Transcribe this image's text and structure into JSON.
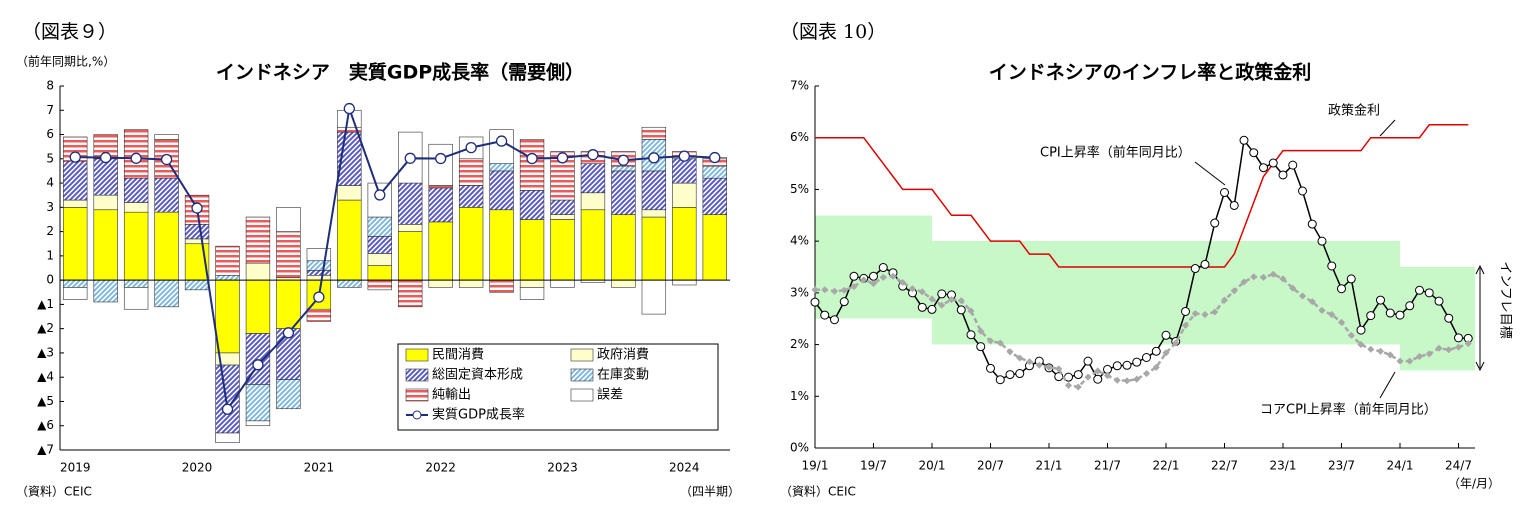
{
  "chart_data": [
    {
      "type": "bar",
      "stacked": true,
      "figure_label": "（図表９）",
      "title": "インドネシア　実質GDP成長率（需要側）",
      "y_label": "（前年同期比,%）",
      "x_label": "（四半期）",
      "source": "（資料）CEIC",
      "legend": "lower right",
      "categories": [
        "2019",
        null,
        null,
        null,
        "2020",
        null,
        null,
        null,
        "2021",
        null,
        null,
        null,
        "2022",
        null,
        null,
        null,
        "2023",
        null,
        null,
        null,
        "2024",
        null
      ],
      "ylim": [
        -7,
        8
      ],
      "yticks": [
        8,
        7,
        6,
        5,
        4,
        3,
        2,
        1,
        0,
        {
          "value": -1,
          "label": "▲1"
        },
        {
          "value": -2,
          "label": "▲2"
        },
        {
          "value": -3,
          "label": "▲3"
        },
        {
          "value": -4,
          "label": "▲4"
        },
        {
          "value": -5,
          "label": "▲5"
        },
        {
          "value": -6,
          "label": "▲6"
        },
        {
          "value": -7,
          "label": "▲7"
        }
      ],
      "series": [
        {
          "name": "民間消費",
          "color": "#ffff00",
          "pattern": "solid",
          "values": [
            3.0,
            2.9,
            2.8,
            2.8,
            1.5,
            -3.0,
            -2.2,
            -2.0,
            -1.2,
            3.3,
            0.6,
            2.0,
            2.4,
            3.0,
            2.9,
            2.5,
            2.5,
            2.9,
            2.7,
            2.6,
            3.0,
            2.7
          ]
        },
        {
          "name": "政府消費",
          "color": "#ffffcc",
          "pattern": "solid",
          "values": [
            0.3,
            0.6,
            0.4,
            0.0,
            0.2,
            -0.5,
            0.7,
            0.1,
            0.2,
            0.6,
            0.5,
            0.3,
            -0.3,
            -0.3,
            0.0,
            -0.3,
            0.2,
            0.7,
            -0.3,
            0.3,
            1.0,
            0.0
          ]
        },
        {
          "name": "総固定資本形成",
          "color": "#5a5ac8",
          "pattern": "diagonal",
          "values": [
            1.6,
            1.5,
            1.0,
            1.4,
            0.6,
            -2.8,
            -2.1,
            -2.1,
            0.2,
            2.2,
            0.7,
            1.7,
            1.4,
            0.9,
            1.6,
            1.2,
            0.6,
            1.2,
            1.8,
            1.6,
            1.0,
            1.5
          ]
        },
        {
          "name": "在庫変動",
          "color": "#7fb8e0",
          "pattern": "diagonal",
          "values": [
            -0.3,
            -0.9,
            -0.3,
            -1.1,
            -0.4,
            0.2,
            -1.5,
            -1.2,
            0.4,
            -0.3,
            0.8,
            0.0,
            0.0,
            0.0,
            0.3,
            0.0,
            0.0,
            0.0,
            0.2,
            1.3,
            0.1,
            0.5
          ]
        },
        {
          "name": "純輸出",
          "color": "#e85c5c",
          "pattern": "horizontal",
          "values": [
            1.0,
            1.0,
            2.0,
            1.6,
            1.2,
            1.2,
            1.9,
            1.9,
            -0.5,
            0.2,
            -0.4,
            -1.1,
            0.1,
            1.1,
            -0.5,
            2.1,
            2.0,
            0.5,
            0.6,
            0.5,
            0.2,
            0.3
          ]
        },
        {
          "name": "誤差",
          "color": "#ffffff",
          "pattern": "solid",
          "values": [
            -0.5,
            0.0,
            -0.9,
            0.2,
            0.0,
            -0.4,
            -0.2,
            1.0,
            0.5,
            0.7,
            1.4,
            2.1,
            1.7,
            0.9,
            1.4,
            -0.5,
            -0.3,
            -0.1,
            0.0,
            -1.4,
            -0.2,
            0.05
          ]
        },
        {
          "name": "実質GDP成長率",
          "type": "line",
          "color": "#1f2d7a",
          "values": [
            5.07,
            5.05,
            5.02,
            4.97,
            2.97,
            -5.32,
            -3.49,
            -2.17,
            -0.7,
            7.07,
            3.51,
            5.02,
            5.01,
            5.46,
            5.73,
            5.01,
            5.04,
            5.17,
            4.94,
            5.04,
            5.11,
            5.05
          ]
        }
      ]
    },
    {
      "type": "line",
      "figure_label": "（図表 10）",
      "title": "インドネシアのインフレ率と政策金利",
      "x_label": "（年/月）",
      "source": "（資料）CEIC",
      "categories": [
        "19/1",
        null,
        null,
        null,
        null,
        null,
        "19/7",
        null,
        null,
        null,
        null,
        null,
        "20/1",
        null,
        null,
        null,
        null,
        null,
        "20/7",
        null,
        null,
        null,
        null,
        null,
        "21/1",
        null,
        null,
        null,
        null,
        null,
        "21/7",
        null,
        null,
        null,
        null,
        null,
        "22/1",
        null,
        null,
        null,
        null,
        null,
        "22/7",
        null,
        null,
        null,
        null,
        null,
        "23/1",
        null,
        null,
        null,
        null,
        null,
        "23/7",
        null,
        null,
        null,
        null,
        null,
        "24/1",
        null,
        null,
        null,
        null,
        null,
        "24/7",
        null
      ],
      "ylim": [
        0,
        7
      ],
      "yticks": [
        {
          "value": 0,
          "label": "0%"
        },
        {
          "value": 1,
          "label": "1%"
        },
        {
          "value": 2,
          "label": "2%"
        },
        {
          "value": 3,
          "label": "3%"
        },
        {
          "value": 4,
          "label": "4%"
        },
        {
          "value": 5,
          "label": "5%"
        },
        {
          "value": 6,
          "label": "6%"
        },
        {
          "value": 7,
          "label": "7%"
        }
      ],
      "target_band": {
        "name": "インフレ目標",
        "color": "#c8f7c8",
        "low": [
          2.5,
          2.5,
          2.5,
          2.5,
          2.5,
          2.5,
          2.5,
          2.5,
          2.5,
          2.5,
          2.5,
          2.5,
          2,
          2,
          2,
          2,
          2,
          2,
          2,
          2,
          2,
          2,
          2,
          2,
          2,
          2,
          2,
          2,
          2,
          2,
          2,
          2,
          2,
          2,
          2,
          2,
          2,
          2,
          2,
          2,
          2,
          2,
          2,
          2,
          2,
          2,
          2,
          2,
          2,
          2,
          2,
          2,
          2,
          2,
          2,
          2,
          2,
          2,
          2,
          2,
          1.5,
          1.5,
          1.5,
          1.5,
          1.5,
          1.5,
          1.5,
          1.5
        ],
        "high": [
          4.5,
          4.5,
          4.5,
          4.5,
          4.5,
          4.5,
          4.5,
          4.5,
          4.5,
          4.5,
          4.5,
          4.5,
          4,
          4,
          4,
          4,
          4,
          4,
          4,
          4,
          4,
          4,
          4,
          4,
          4,
          4,
          4,
          4,
          4,
          4,
          4,
          4,
          4,
          4,
          4,
          4,
          4,
          4,
          4,
          4,
          4,
          4,
          4,
          4,
          4,
          4,
          4,
          4,
          4,
          4,
          4,
          4,
          4,
          4,
          4,
          4,
          4,
          4,
          4,
          4,
          3.5,
          3.5,
          3.5,
          3.5,
          3.5,
          3.5,
          3.5,
          3.5
        ]
      },
      "series": [
        {
          "name": "政策金利",
          "color": "#e00000",
          "marker": "none",
          "values": [
            6,
            6,
            6,
            6,
            6,
            6,
            5.75,
            5.5,
            5.25,
            5,
            5,
            5,
            5,
            4.75,
            4.5,
            4.5,
            4.5,
            4.25,
            4,
            4,
            4,
            4,
            3.75,
            3.75,
            3.75,
            3.5,
            3.5,
            3.5,
            3.5,
            3.5,
            3.5,
            3.5,
            3.5,
            3.5,
            3.5,
            3.5,
            3.5,
            3.5,
            3.5,
            3.5,
            3.5,
            3.5,
            3.5,
            3.75,
            4.25,
            4.75,
            5.25,
            5.5,
            5.75,
            5.75,
            5.75,
            5.75,
            5.75,
            5.75,
            5.75,
            5.75,
            5.75,
            6,
            6,
            6,
            6,
            6,
            6,
            6.25,
            6.25,
            6.25,
            6.25,
            6.25
          ]
        },
        {
          "name": "CPI上昇率（前年同月比）",
          "color": "#000000",
          "marker": "circle",
          "values": [
            2.82,
            2.57,
            2.48,
            2.83,
            3.32,
            3.28,
            3.32,
            3.49,
            3.39,
            3.13,
            3.0,
            2.72,
            2.68,
            2.98,
            2.96,
            2.67,
            2.19,
            1.96,
            1.54,
            1.32,
            1.42,
            1.44,
            1.59,
            1.68,
            1.55,
            1.38,
            1.37,
            1.42,
            1.68,
            1.33,
            1.52,
            1.59,
            1.6,
            1.66,
            1.75,
            1.87,
            2.18,
            2.06,
            2.64,
            3.47,
            3.55,
            4.35,
            4.94,
            4.69,
            5.95,
            5.71,
            5.42,
            5.51,
            5.28,
            5.47,
            4.97,
            4.33,
            4.0,
            3.52,
            3.08,
            3.27,
            2.28,
            2.56,
            2.86,
            2.61,
            2.57,
            2.75,
            3.05,
            3.0,
            2.84,
            2.51,
            2.13,
            2.12
          ]
        },
        {
          "name": "コアCPI上昇率（前年同月比）",
          "color": "#a8a8a8",
          "marker": "dot",
          "dash": true,
          "values": [
            3.06,
            3.06,
            3.03,
            3.05,
            3.12,
            3.25,
            3.18,
            3.3,
            3.32,
            3.2,
            3.08,
            3.02,
            2.88,
            2.76,
            2.87,
            2.85,
            2.65,
            2.26,
            2.07,
            2.03,
            1.86,
            1.74,
            1.67,
            1.6,
            1.56,
            1.53,
            1.21,
            1.18,
            1.37,
            1.49,
            1.4,
            1.31,
            1.3,
            1.33,
            1.44,
            1.56,
            1.84,
            2.03,
            2.37,
            2.6,
            2.58,
            2.63,
            2.86,
            3.04,
            3.21,
            3.31,
            3.3,
            3.36,
            3.27,
            3.09,
            2.94,
            2.83,
            2.66,
            2.58,
            2.43,
            2.18,
            2.0,
            1.91,
            1.87,
            1.8,
            1.68,
            1.68,
            1.77,
            1.82,
            1.93,
            1.9,
            1.95,
            2.02
          ]
        }
      ]
    }
  ]
}
